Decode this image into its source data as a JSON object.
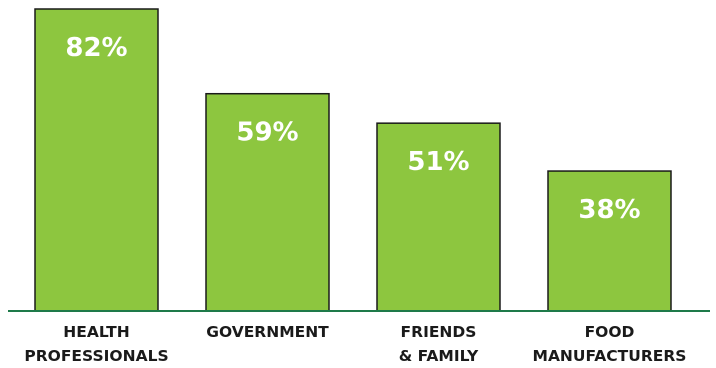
{
  "chart_data": {
    "type": "bar",
    "categories": [
      [
        "HEALTH",
        "PROFESSIONALS"
      ],
      [
        "GOVERNMENT"
      ],
      [
        "FRIENDS",
        "& FAMILY"
      ],
      [
        "FOOD",
        "MANUFACTURERS"
      ]
    ],
    "values": [
      82,
      59,
      51,
      38
    ],
    "data_labels": [
      "82%",
      "59%",
      "51%",
      "38%"
    ],
    "ylim": [
      0,
      82
    ],
    "grid": false,
    "bar_color": "#8dc63f",
    "bar_outline_color": "#1a1a1a",
    "baseline_color": "#1e7a4a",
    "label_color": "#ffffff"
  }
}
